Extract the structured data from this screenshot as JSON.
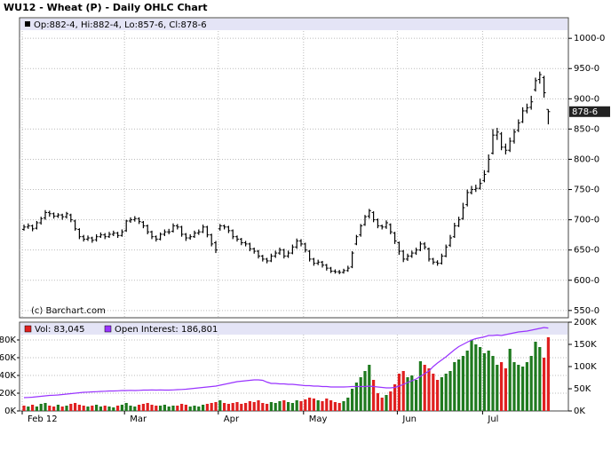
{
  "chart_data": [
    {
      "type": "ohlc",
      "title": "WU12 - Wheat (P) - Daily OHLC Chart",
      "subtitle": "Op:882-4, Hi:882-4, Lo:857-6, Cl:878-6",
      "annotation": "(c) Barchart.com",
      "last_label": "878-6",
      "color": "#000000",
      "grid": true,
      "ylim": [
        538,
        1034
      ],
      "yticks": [
        {
          "value": 550,
          "label": "550-0"
        },
        {
          "value": 600,
          "label": "600-0"
        },
        {
          "value": 650,
          "label": "650-0"
        },
        {
          "value": 700,
          "label": "700-0"
        },
        {
          "value": 750,
          "label": "750-0"
        },
        {
          "value": 800,
          "label": "800-0"
        },
        {
          "value": 850,
          "label": "850-0"
        },
        {
          "value": 900,
          "label": "900-0"
        },
        {
          "value": 950,
          "label": "950-0"
        },
        {
          "value": 1000,
          "label": "1000-0"
        }
      ],
      "categories": [
        "Feb 12",
        null,
        null,
        null,
        null,
        null,
        null,
        null,
        null,
        null,
        null,
        null,
        null,
        null,
        null,
        null,
        null,
        null,
        null,
        null,
        null,
        null,
        null,
        null,
        "Mar",
        null,
        null,
        null,
        null,
        null,
        null,
        null,
        null,
        null,
        null,
        null,
        null,
        null,
        null,
        null,
        null,
        null,
        null,
        null,
        null,
        null,
        "Apr",
        null,
        null,
        null,
        null,
        null,
        null,
        null,
        null,
        null,
        null,
        null,
        null,
        null,
        null,
        null,
        null,
        null,
        null,
        null,
        "May",
        null,
        null,
        null,
        null,
        null,
        null,
        null,
        null,
        null,
        null,
        null,
        null,
        null,
        null,
        null,
        null,
        null,
        null,
        null,
        null,
        null,
        "Jun",
        null,
        null,
        null,
        null,
        null,
        null,
        null,
        null,
        null,
        null,
        null,
        null,
        null,
        null,
        null,
        null,
        null,
        null,
        null,
        "Jul",
        null,
        null,
        null,
        null,
        null,
        null,
        null,
        null,
        null,
        null,
        null,
        null,
        null,
        null,
        null
      ],
      "ohlc": [
        [
          684,
          692,
          682,
          688
        ],
        [
          688,
          694,
          685,
          690
        ],
        [
          690,
          692,
          681,
          685
        ],
        [
          686,
          698,
          684,
          695
        ],
        [
          695,
          705,
          692,
          702
        ],
        [
          703,
          716,
          700,
          712
        ],
        [
          712,
          715,
          705,
          710
        ],
        [
          710,
          712,
          702,
          706
        ],
        [
          706,
          711,
          703,
          708
        ],
        [
          708,
          710,
          700,
          705
        ],
        [
          705,
          713,
          702,
          710
        ],
        [
          708,
          710,
          696,
          700
        ],
        [
          698,
          700,
          682,
          685
        ],
        [
          684,
          686,
          668,
          672
        ],
        [
          672,
          675,
          664,
          668
        ],
        [
          668,
          674,
          665,
          670
        ],
        [
          670,
          672,
          662,
          666
        ],
        [
          667,
          676,
          664,
          672
        ],
        [
          672,
          679,
          670,
          675
        ],
        [
          675,
          678,
          668,
          672
        ],
        [
          672,
          680,
          670,
          676
        ],
        [
          676,
          682,
          673,
          678
        ],
        [
          678,
          680,
          670,
          674
        ],
        [
          674,
          684,
          672,
          680
        ],
        [
          682,
          700,
          680,
          698
        ],
        [
          698,
          704,
          695,
          700
        ],
        [
          700,
          706,
          697,
          702
        ],
        [
          702,
          704,
          693,
          697
        ],
        [
          696,
          698,
          686,
          690
        ],
        [
          690,
          692,
          676,
          680
        ],
        [
          680,
          682,
          668,
          672
        ],
        [
          672,
          674,
          664,
          668
        ],
        [
          668,
          679,
          666,
          676
        ],
        [
          676,
          684,
          673,
          680
        ],
        [
          680,
          685,
          676,
          680
        ],
        [
          681,
          694,
          679,
          690
        ],
        [
          690,
          693,
          684,
          688
        ],
        [
          688,
          690,
          672,
          676
        ],
        [
          676,
          678,
          665,
          670
        ],
        [
          670,
          676,
          667,
          672
        ],
        [
          672,
          682,
          670,
          678
        ],
        [
          678,
          684,
          675,
          680
        ],
        [
          680,
          692,
          678,
          688
        ],
        [
          688,
          690,
          671,
          675
        ],
        [
          675,
          677,
          656,
          660
        ],
        [
          662,
          665,
          645,
          650
        ],
        [
          685,
          693,
          682,
          690
        ],
        [
          690,
          692,
          684,
          688
        ],
        [
          688,
          690,
          678,
          682
        ],
        [
          682,
          684,
          668,
          672
        ],
        [
          672,
          674,
          664,
          668
        ],
        [
          668,
          670,
          658,
          662
        ],
        [
          662,
          665,
          656,
          660
        ],
        [
          660,
          662,
          648,
          652
        ],
        [
          652,
          654,
          644,
          648
        ],
        [
          648,
          650,
          636,
          640
        ],
        [
          640,
          642,
          631,
          635
        ],
        [
          635,
          637,
          628,
          632
        ],
        [
          632,
          644,
          630,
          640
        ],
        [
          640,
          649,
          637,
          645
        ],
        [
          645,
          654,
          642,
          650
        ],
        [
          650,
          652,
          636,
          640
        ],
        [
          640,
          649,
          637,
          645
        ],
        [
          645,
          659,
          643,
          655
        ],
        [
          655,
          669,
          652,
          665
        ],
        [
          665,
          668,
          656,
          660
        ],
        [
          660,
          662,
          646,
          650
        ],
        [
          648,
          650,
          631,
          635
        ],
        [
          635,
          637,
          624,
          628
        ],
        [
          628,
          634,
          625,
          630
        ],
        [
          630,
          632,
          621,
          625
        ],
        [
          625,
          627,
          616,
          620
        ],
        [
          620,
          622,
          612,
          615
        ],
        [
          615,
          618,
          611,
          614
        ],
        [
          614,
          617,
          610,
          613
        ],
        [
          613,
          619,
          611,
          616
        ],
        [
          616,
          624,
          614,
          620
        ],
        [
          622,
          648,
          620,
          645
        ],
        [
          660,
          675,
          658,
          672
        ],
        [
          675,
          693,
          672,
          690
        ],
        [
          692,
          708,
          690,
          705
        ],
        [
          706,
          718,
          702,
          715
        ],
        [
          712,
          714,
          696,
          700
        ],
        [
          700,
          702,
          686,
          690
        ],
        [
          690,
          692,
          684,
          688
        ],
        [
          688,
          699,
          685,
          695
        ],
        [
          692,
          694,
          676,
          680
        ],
        [
          678,
          680,
          660,
          665
        ],
        [
          662,
          664,
          642,
          648
        ],
        [
          648,
          650,
          630,
          635
        ],
        [
          635,
          644,
          632,
          640
        ],
        [
          640,
          649,
          637,
          645
        ],
        [
          645,
          654,
          642,
          650
        ],
        [
          650,
          664,
          648,
          660
        ],
        [
          660,
          663,
          651,
          655
        ],
        [
          652,
          654,
          631,
          635
        ],
        [
          635,
          637,
          626,
          630
        ],
        [
          630,
          633,
          624,
          628
        ],
        [
          628,
          644,
          626,
          640
        ],
        [
          640,
          659,
          638,
          655
        ],
        [
          658,
          675,
          655,
          670
        ],
        [
          672,
          695,
          670,
          690
        ],
        [
          690,
          705,
          688,
          700
        ],
        [
          702,
          728,
          700,
          720
        ],
        [
          725,
          750,
          722,
          745
        ],
        [
          745,
          756,
          742,
          750
        ],
        [
          750,
          758,
          746,
          752
        ],
        [
          752,
          768,
          750,
          760
        ],
        [
          765,
          782,
          762,
          775
        ],
        [
          780,
          808,
          778,
          800
        ],
        [
          810,
          850,
          808,
          840
        ],
        [
          840,
          852,
          832,
          845
        ],
        [
          842,
          845,
          815,
          820
        ],
        [
          820,
          826,
          808,
          815
        ],
        [
          815,
          836,
          812,
          830
        ],
        [
          830,
          850,
          826,
          845
        ],
        [
          848,
          866,
          845,
          860
        ],
        [
          862,
          886,
          860,
          880
        ],
        [
          880,
          892,
          876,
          885
        ],
        [
          886,
          905,
          882,
          895
        ],
        [
          915,
          935,
          912,
          930
        ],
        [
          932,
          945,
          925,
          940
        ],
        [
          935,
          938,
          902,
          910
        ],
        [
          882.5,
          882.5,
          857.75,
          878.75
        ]
      ]
    },
    {
      "type": "volume",
      "grid": true,
      "ylim": [
        0,
        100000
      ],
      "yticks": [
        {
          "value": 0,
          "label": "0K"
        },
        {
          "value": 20000,
          "label": "20K"
        },
        {
          "value": 40000,
          "label": "40K"
        },
        {
          "value": 60000,
          "label": "60K"
        },
        {
          "value": 80000,
          "label": "80K"
        }
      ],
      "y2lim": [
        0,
        200000
      ],
      "y2ticks": [
        {
          "value": 0,
          "label": "0K"
        },
        {
          "value": 50000,
          "label": "50K"
        },
        {
          "value": 100000,
          "label": "100K"
        },
        {
          "value": 150000,
          "label": "150K"
        },
        {
          "value": 200000,
          "label": "200K"
        }
      ],
      "series": [
        {
          "name": "Vol: 83,045",
          "color": "#e02020",
          "up_color": "#1f7a1f",
          "values": [
            6000,
            5000,
            7000,
            5000,
            8000,
            9000,
            6000,
            5000,
            7000,
            5000,
            6000,
            8000,
            9000,
            7000,
            6000,
            5000,
            6000,
            7000,
            5000,
            6000,
            5000,
            4000,
            6000,
            7000,
            9000,
            6000,
            5000,
            7000,
            8000,
            9000,
            7000,
            6000,
            6000,
            7000,
            5000,
            6000,
            6000,
            8000,
            7000,
            5000,
            6000,
            5000,
            7000,
            8000,
            9000,
            10000,
            12000,
            9000,
            8000,
            9000,
            10000,
            8000,
            9000,
            11000,
            10000,
            12000,
            9000,
            8000,
            10000,
            9000,
            11000,
            12000,
            10000,
            9000,
            12000,
            11000,
            13000,
            15000,
            14000,
            12000,
            11000,
            14000,
            12000,
            10000,
            9000,
            11000,
            15000,
            25000,
            32000,
            38000,
            45000,
            52000,
            35000,
            20000,
            15000,
            18000,
            22000,
            30000,
            42000,
            45000,
            38000,
            40000,
            35000,
            56000,
            52000,
            48000,
            42000,
            35000,
            38000,
            42000,
            45000,
            55000,
            58000,
            62000,
            68000,
            80000,
            75000,
            72000,
            65000,
            68000,
            62000,
            52000,
            55000,
            48000,
            70000,
            55000,
            52000,
            50000,
            55000,
            62000,
            78000,
            72000,
            60000,
            83045
          ]
        },
        {
          "name": "Open Interest: 186,801",
          "color": "#9933ff",
          "axis": "y2",
          "values": [
            30000,
            30500,
            31000,
            32000,
            33000,
            34000,
            35000,
            35500,
            36000,
            37000,
            38000,
            39000,
            40000,
            41000,
            42000,
            42500,
            43000,
            43500,
            44000,
            44500,
            45000,
            45000,
            45500,
            46000,
            46000,
            46500,
            46000,
            46500,
            47000,
            47000,
            47500,
            47000,
            47500,
            47000,
            47000,
            47500,
            48000,
            48500,
            49000,
            50000,
            51000,
            52000,
            53000,
            54000,
            55000,
            56000,
            58000,
            60000,
            62000,
            64000,
            66000,
            67000,
            68000,
            69000,
            70000,
            70000,
            69000,
            65000,
            62000,
            62000,
            61000,
            61000,
            60000,
            60000,
            59000,
            58000,
            57000,
            57000,
            56000,
            56000,
            55000,
            55000,
            54000,
            54000,
            54000,
            54000,
            54500,
            55000,
            55000,
            55000,
            55000,
            56000,
            55000,
            54000,
            53000,
            52000,
            52000,
            53000,
            56000,
            60000,
            64000,
            68000,
            72000,
            78000,
            84000,
            90000,
            100000,
            108000,
            115000,
            122000,
            130000,
            138000,
            145000,
            150000,
            155000,
            160000,
            163000,
            165000,
            167000,
            170000,
            170000,
            171000,
            170000,
            172000,
            174000,
            176000,
            178000,
            179000,
            180000,
            182000,
            184000,
            186000,
            188000,
            186801
          ]
        }
      ]
    }
  ]
}
